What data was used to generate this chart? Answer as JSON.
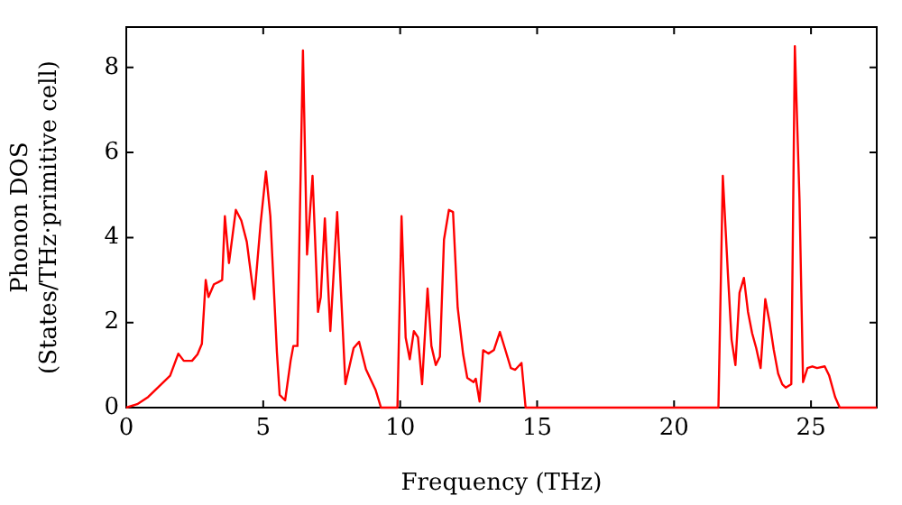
{
  "chart_data": {
    "type": "line",
    "xlabel": "Frequency (THz)",
    "ylabel": "Phonon DOS\n(States/THz·primitive cell)",
    "x": [
      0,
      0.4,
      0.8,
      1.2,
      1.6,
      1.9,
      2.1,
      2.4,
      2.6,
      2.76,
      2.9,
      3.0,
      3.2,
      3.36,
      3.5,
      3.6,
      3.75,
      4.0,
      4.2,
      4.4,
      4.67,
      4.9,
      5.1,
      5.26,
      5.5,
      5.6,
      5.8,
      6.0,
      6.1,
      6.25,
      6.45,
      6.6,
      6.8,
      7.0,
      7.1,
      7.25,
      7.45,
      7.7,
      8.0,
      8.3,
      8.5,
      8.75,
      9.1,
      9.3,
      9.7,
      9.9,
      10.05,
      10.2,
      10.35,
      10.5,
      10.65,
      10.8,
      11.0,
      11.14,
      11.3,
      11.45,
      11.6,
      11.78,
      11.93,
      12.1,
      12.3,
      12.45,
      12.68,
      12.76,
      12.9,
      13.03,
      13.22,
      13.42,
      13.64,
      13.82,
      14.04,
      14.2,
      14.43,
      14.58,
      21.62,
      21.78,
      21.97,
      22.1,
      22.24,
      22.39,
      22.55,
      22.7,
      22.85,
      23.0,
      23.16,
      23.33,
      23.49,
      23.64,
      23.8,
      23.95,
      24.08,
      24.28,
      24.41,
      24.58,
      24.71,
      24.87,
      25.05,
      25.22,
      25.5,
      25.66,
      25.88,
      26.05,
      27.4
    ],
    "series": [
      {
        "color": "#ff0000",
        "values": [
          0,
          0.08,
          0.25,
          0.5,
          0.75,
          1.27,
          1.1,
          1.1,
          1.25,
          1.5,
          3.0,
          2.6,
          2.9,
          2.95,
          3.0,
          4.5,
          3.4,
          4.65,
          4.4,
          3.9,
          2.55,
          4.3,
          5.55,
          4.5,
          1.3,
          0.3,
          0.17,
          1.1,
          1.45,
          1.45,
          8.4,
          3.6,
          5.45,
          2.25,
          2.6,
          4.45,
          1.8,
          4.6,
          0.55,
          1.4,
          1.55,
          0.9,
          0.42,
          0,
          0,
          0,
          4.5,
          1.65,
          1.14,
          1.8,
          1.65,
          0.55,
          2.8,
          1.45,
          1.0,
          1.2,
          3.95,
          4.65,
          4.6,
          2.35,
          1.25,
          0.7,
          0.6,
          0.68,
          0.14,
          1.35,
          1.27,
          1.35,
          1.78,
          1.4,
          0.93,
          0.89,
          1.05,
          0,
          0,
          5.45,
          3.1,
          1.6,
          1.0,
          2.7,
          3.05,
          2.25,
          1.75,
          1.4,
          0.93,
          2.55,
          2.0,
          1.36,
          0.8,
          0.55,
          0.47,
          0.55,
          8.5,
          4.9,
          0.6,
          0.93,
          0.97,
          0.93,
          0.97,
          0.76,
          0.25,
          0,
          0
        ]
      }
    ],
    "xlim": [
      0,
      27.4
    ],
    "ylim": [
      0,
      8.95
    ],
    "xticks": [
      0,
      5,
      10,
      15,
      20,
      25
    ],
    "yticks": [
      0,
      2,
      4,
      6,
      8
    ],
    "grid": false,
    "legend": false,
    "marker": "none",
    "line_style": "solid"
  }
}
